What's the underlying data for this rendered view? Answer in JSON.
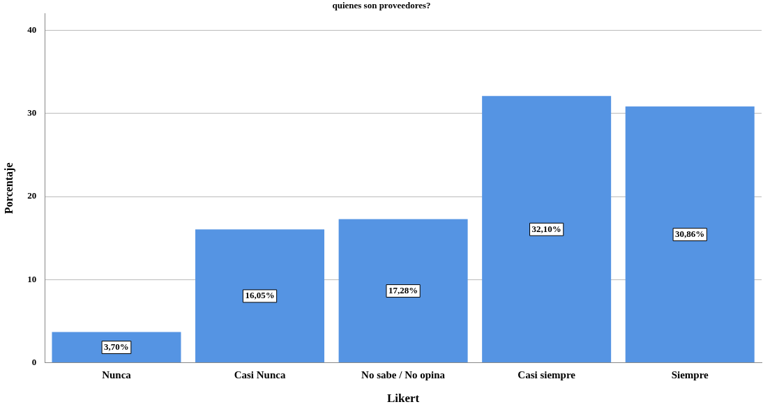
{
  "chart_data": {
    "type": "bar",
    "title": "quienes son proveedores?",
    "xlabel": "Likert",
    "ylabel": "Porcentaje",
    "categories": [
      "Nunca",
      "Casi Nunca",
      "No sabe / No opina",
      "Casi siempre",
      "Siempre"
    ],
    "values": [
      3.7,
      16.05,
      17.28,
      32.1,
      30.86
    ],
    "color": "#5594e3",
    "value_labels": [
      "3,70%",
      "16,05%",
      "17,28%",
      "32,10%",
      "30,86%"
    ],
    "ylim": [
      0,
      42
    ],
    "yticks": [
      0,
      10,
      20,
      30,
      40
    ],
    "grid": "y",
    "legend": false
  }
}
